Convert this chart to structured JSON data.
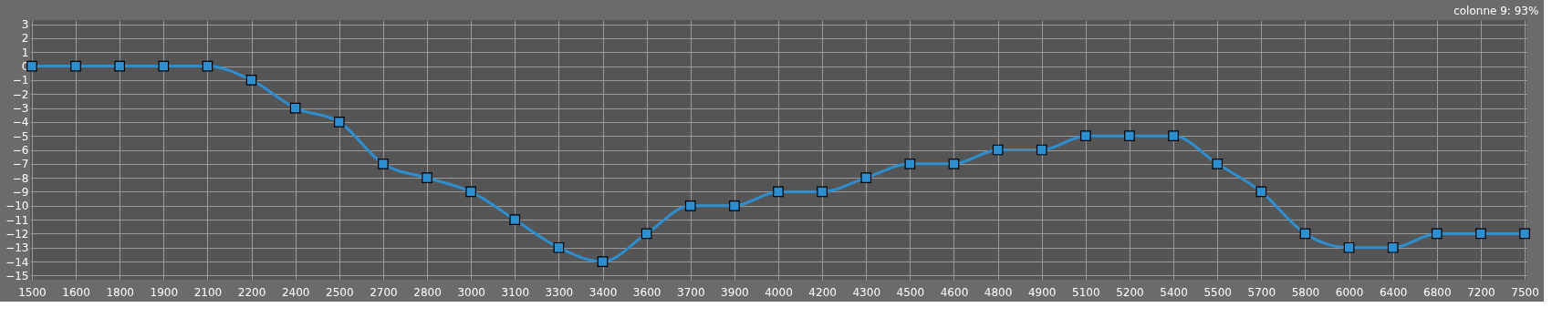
{
  "chart_data": {
    "type": "line",
    "categories": [
      "1500",
      "1600",
      "1800",
      "1900",
      "2100",
      "2200",
      "2400",
      "2500",
      "2700",
      "2800",
      "3000",
      "3100",
      "3300",
      "3400",
      "3600",
      "3700",
      "3900",
      "4000",
      "4200",
      "4300",
      "4500",
      "4600",
      "4800",
      "4900",
      "5100",
      "5200",
      "5400",
      "5500",
      "5700",
      "5800",
      "6000",
      "6400",
      "6800",
      "7200",
      "7500"
    ],
    "series": [
      {
        "color": "#2e8fd0",
        "values": [
          0,
          0,
          0,
          0,
          0,
          -1,
          -3,
          -4,
          -7,
          -8,
          -9,
          -11,
          -13,
          -14,
          -12,
          -10,
          -10,
          -9,
          -9,
          -8,
          -7,
          -7,
          -6,
          -6,
          -5,
          -5,
          -5,
          -7,
          -9,
          -12,
          -13,
          -13,
          -12,
          -12,
          -12
        ]
      }
    ],
    "ylim": [
      -15.3,
      3.3
    ],
    "yticks": [
      -15,
      -14,
      -13,
      -12,
      -11,
      -10,
      -9,
      -8,
      -7,
      -6,
      -5,
      -4,
      -3,
      -2,
      -1,
      0,
      1,
      2,
      3
    ],
    "grid": true,
    "marker": "square",
    "line_style": "solid",
    "annotations": [
      "colonne 9: 93%"
    ]
  }
}
